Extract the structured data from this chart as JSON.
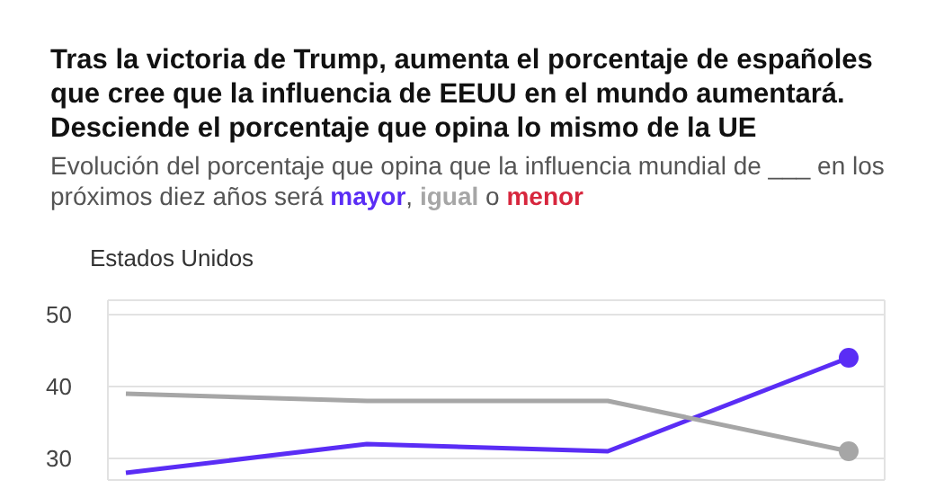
{
  "chart_data": {
    "type": "line",
    "title": "Tras la victoria de Trump, aumenta el porcentaje de españoles que cree que la influencia de EEUU en el mundo aumentará. Desciende el porcentaje que opina lo mismo de la UE",
    "subtitle": "Evolución del porcentaje que opina que la influencia mundial de ___ en los próximos diez años será mayor, igual o menor",
    "annotations": [
      "Estados Unidos"
    ],
    "categories": [
      null,
      null,
      null,
      null
    ],
    "series": [
      {
        "color": "#5a2df5",
        "values": [
          28,
          32,
          31,
          44
        ]
      },
      {
        "color": "#a6a6a6",
        "values": [
          39,
          38,
          38,
          31
        ]
      },
      {
        "color": "#d7263d",
        "values": [
          null,
          null,
          null,
          null
        ]
      }
    ],
    "ylim": [
      27,
      52
    ],
    "yticks": [
      30,
      40,
      50
    ],
    "grid": true,
    "line_style": "solid"
  }
}
